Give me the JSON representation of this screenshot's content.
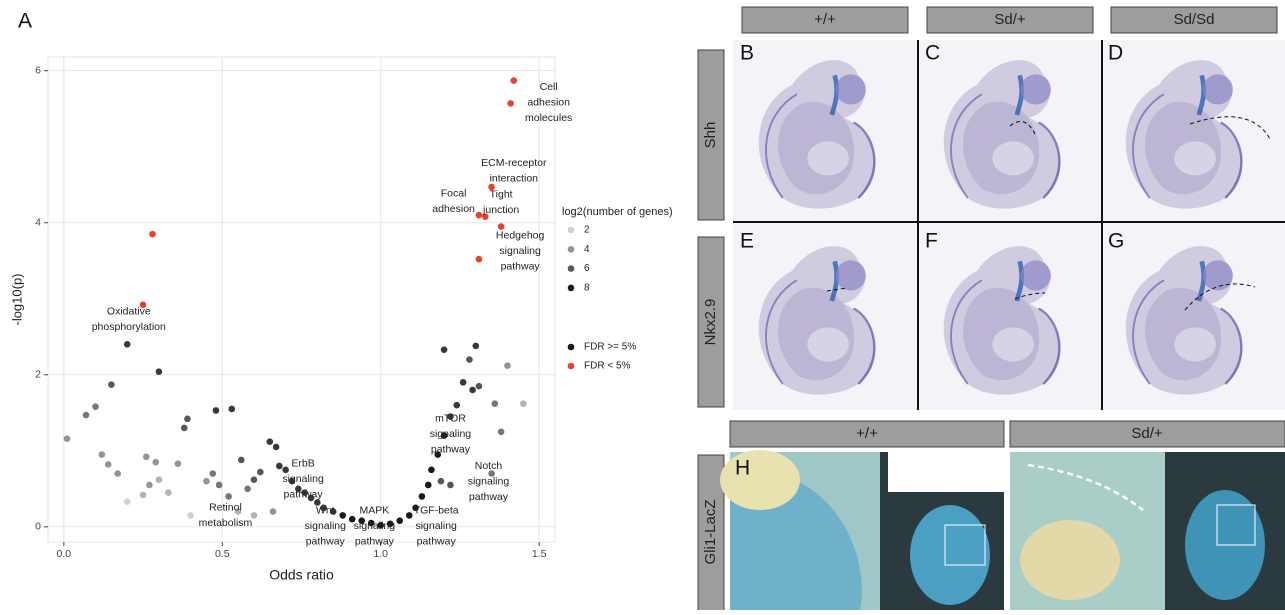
{
  "figure": {
    "panel_label": "A",
    "columns": [
      "+/+",
      "Sd/+",
      "Sd/Sd"
    ],
    "rows": [
      "Shh",
      "Nkx2.9",
      "Gli1-LacZ"
    ],
    "panels": [
      "B",
      "C",
      "D",
      "E",
      "F",
      "G",
      "H"
    ],
    "bottom_columns": [
      "+/+",
      "Sd/+"
    ]
  },
  "chart_data": {
    "type": "scatter",
    "x_label": "Odds ratio",
    "y_label": "-log10(p)",
    "xlim": [
      -0.05,
      1.55
    ],
    "ylim": [
      -0.2,
      6.18
    ],
    "xticks": [
      {
        "value": 0,
        "label": "0.0"
      },
      0.5,
      {
        "value": 1,
        "label": "1.0"
      },
      1.5
    ],
    "yticks": [
      0,
      2,
      4,
      6
    ],
    "grid": true,
    "size_legend": {
      "title": "log2(number of genes)",
      "values": [
        2,
        4,
        6,
        8
      ]
    },
    "series": [
      {
        "name": "FDR >= 5%",
        "color": "#1a1a1a",
        "x": [
          0.01,
          0.07,
          0.1,
          0.15,
          0.2,
          0.3,
          0.12,
          0.14,
          0.17,
          0.2,
          0.26,
          0.27,
          0.29,
          0.3,
          0.25,
          0.33,
          0.36,
          0.38,
          0.39,
          0.48,
          0.53,
          0.45,
          0.47,
          0.49,
          0.52,
          0.56,
          0.58,
          0.6,
          0.62,
          0.65,
          0.67,
          0.68,
          0.7,
          0.72,
          0.74,
          0.76,
          0.78,
          0.8,
          0.82,
          0.85,
          0.88,
          0.91,
          0.94,
          0.97,
          1.0,
          1.03,
          1.06,
          1.09,
          1.11,
          1.13,
          1.15,
          1.16,
          1.18,
          1.2,
          1.22,
          1.24,
          1.2,
          1.26,
          1.29,
          1.3,
          1.31,
          1.28,
          1.36,
          1.38,
          1.4,
          1.45,
          1.35,
          1.22,
          1.19,
          0.55,
          0.6,
          0.4,
          0.66
        ],
        "values": [
          1.16,
          1.47,
          1.58,
          1.87,
          2.4,
          2.04,
          0.95,
          0.82,
          0.7,
          0.33,
          0.92,
          0.55,
          0.85,
          0.62,
          0.42,
          0.45,
          0.83,
          1.3,
          1.42,
          1.53,
          1.55,
          0.6,
          0.7,
          0.55,
          0.4,
          0.88,
          0.5,
          0.62,
          0.72,
          1.12,
          1.05,
          0.8,
          0.75,
          0.6,
          0.5,
          0.45,
          0.38,
          0.32,
          0.25,
          0.2,
          0.15,
          0.1,
          0.08,
          0.05,
          0.02,
          0.04,
          0.08,
          0.15,
          0.25,
          0.4,
          0.55,
          0.75,
          0.95,
          1.2,
          1.45,
          1.6,
          2.33,
          1.9,
          1.8,
          2.38,
          1.85,
          2.2,
          1.62,
          1.25,
          2.12,
          1.62,
          0.7,
          0.55,
          0.6,
          0.2,
          0.15,
          0.15,
          0.2
        ],
        "sizes": [
          4,
          5,
          5,
          6,
          7,
          7,
          4,
          4,
          4,
          2,
          4,
          4,
          4,
          3,
          3,
          3,
          4,
          6,
          6,
          7,
          7,
          4,
          5,
          5,
          5,
          6,
          5,
          6,
          6,
          7,
          7,
          7,
          7,
          7,
          7,
          7,
          7,
          7,
          7,
          7,
          8,
          8,
          8,
          8,
          8,
          8,
          8,
          8,
          8,
          8,
          8,
          8,
          8,
          8,
          7,
          7,
          7,
          7,
          7,
          7,
          6,
          6,
          5,
          5,
          4,
          3,
          5,
          6,
          6,
          3,
          3,
          2,
          4
        ]
      },
      {
        "name": "FDR < 5%",
        "color": "#e8402f",
        "x": [
          0.28,
          0.25,
          1.42,
          1.41,
          1.35,
          1.33,
          1.31,
          1.38,
          1.31
        ],
        "values": [
          3.85,
          2.92,
          5.87,
          5.57,
          4.47,
          4.08,
          4.1,
          3.95,
          3.52
        ],
        "sizes": [
          6,
          6,
          6,
          6,
          6,
          6,
          6,
          6,
          6
        ]
      }
    ],
    "annotations": [
      {
        "lines": [
          "Cell",
          "adhesion",
          "molecules"
        ],
        "x": 1.53,
        "y": 5.78
      },
      {
        "lines": [
          "ECM-receptor",
          "interaction"
        ],
        "x": 1.42,
        "y": 4.78
      },
      {
        "lines": [
          "Focal",
          "adhesion"
        ],
        "x": 1.23,
        "y": 4.38
      },
      {
        "lines": [
          "Tight",
          "junction"
        ],
        "x": 1.38,
        "y": 4.37
      },
      {
        "lines": [
          "Hedgehog",
          "signaling",
          "pathway"
        ],
        "x": 1.44,
        "y": 3.83
      },
      {
        "lines": [
          "Oxidative",
          "phosphorylation"
        ],
        "x": 0.205,
        "y": 2.83
      },
      {
        "lines": [
          "mTOR",
          "signaling",
          "pathway"
        ],
        "x": 1.22,
        "y": 1.42
      },
      {
        "lines": [
          "Notch",
          "signaling",
          "pathway"
        ],
        "x": 1.34,
        "y": 0.8
      },
      {
        "lines": [
          "ErbB",
          "signaling",
          "pathway"
        ],
        "x": 0.755,
        "y": 0.83
      },
      {
        "lines": [
          "Retinol",
          "metabolism"
        ],
        "x": 0.51,
        "y": 0.25
      },
      {
        "lines": [
          "Wnt",
          "signaling",
          "pathway"
        ],
        "x": 0.825,
        "y": 0.21
      },
      {
        "lines": [
          "MAPK",
          "signaling",
          "pathway"
        ],
        "x": 0.98,
        "y": 0.21
      },
      {
        "lines": [
          "TGF-beta",
          "signaling",
          "pathway"
        ],
        "x": 1.175,
        "y": 0.21
      }
    ]
  }
}
